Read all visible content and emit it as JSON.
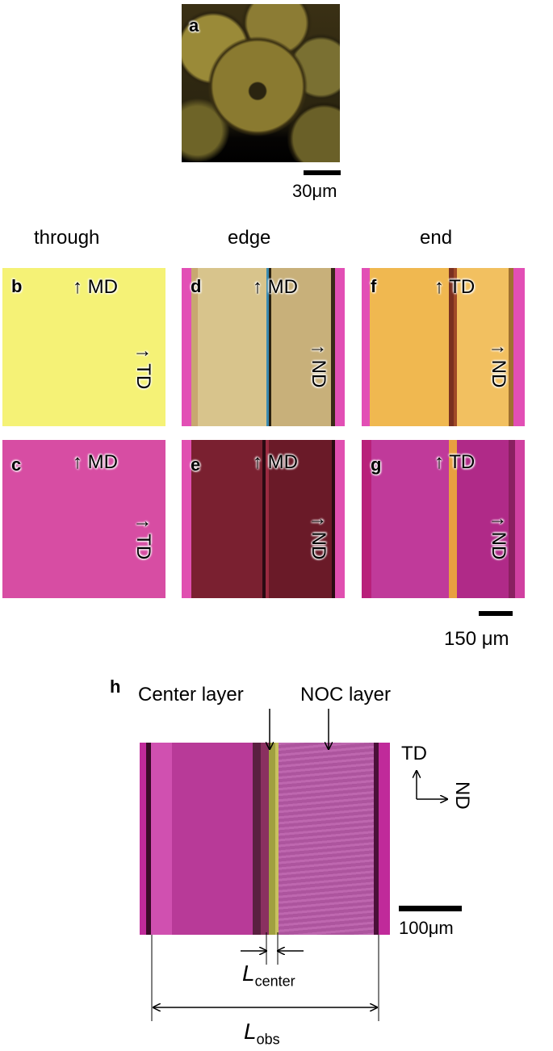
{
  "panel_labels": {
    "a": "a",
    "b": "b",
    "c": "c",
    "d": "d",
    "e": "e",
    "f": "f",
    "g": "g",
    "h": "h"
  },
  "column_titles": {
    "through": "through",
    "edge": "edge",
    "end": "end"
  },
  "directions": {
    "b_up": "↑ MD",
    "b_side": "↑ TD",
    "c_up": "↑ MD",
    "c_side": "↑ TD",
    "d_up": "↑ MD",
    "d_side": "↑ ND",
    "e_up": "↑ MD",
    "e_side": "↑ ND",
    "f_up": "↑ TD",
    "f_side": "↑ ND",
    "g_up": "↑ TD",
    "g_side": "↑ ND"
  },
  "scale_bars": {
    "a": "30μm",
    "grid": "150 μm",
    "h": "100μm"
  },
  "panel_h": {
    "center_layer": "Center layer",
    "noc_layer": "NOC layer",
    "axis_up": "TD",
    "axis_right": "ND",
    "l_center_main": "L",
    "l_center_sub": "center",
    "l_obs_main": "L",
    "l_obs_sub": "obs"
  },
  "colors": {
    "yellow": "#f6f27a",
    "pink": "#d64aa0",
    "dark_red": "#6a1a2e",
    "gold": "#e8b14a",
    "magenta": "#b42a9a"
  }
}
